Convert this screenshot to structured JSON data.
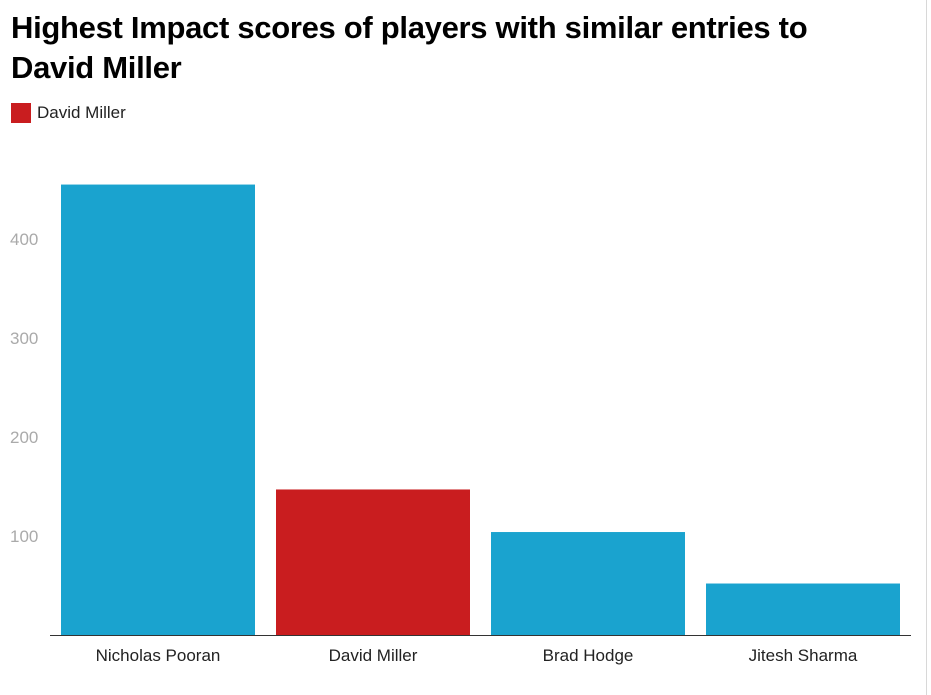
{
  "chart_data": {
    "type": "bar",
    "title": "Highest Impact scores of players with similar entries to David Miller",
    "xlabel": "",
    "ylabel": "",
    "categories": [
      "Nicholas Pooran",
      "David Miller",
      "Brad Hodge",
      "Jitesh Sharma"
    ],
    "values": [
      455,
      147,
      104,
      52
    ],
    "highlight": "David Miller",
    "ylim": [
      0,
      460
    ],
    "yticks": [
      100,
      200,
      300,
      400
    ],
    "grid": false,
    "legend": {
      "placement": "top-left",
      "entries": [
        {
          "label": "David Miller",
          "color": "#c91d1f"
        }
      ]
    },
    "colors": {
      "default": "#1aa3cf",
      "highlight": "#c91d1f",
      "axis": "#333333"
    }
  }
}
